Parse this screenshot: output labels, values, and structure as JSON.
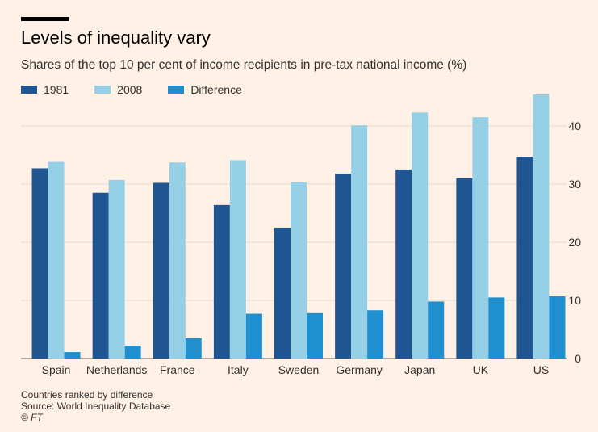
{
  "header": {
    "title": "Levels of inequality vary",
    "subtitle": "Shares of the top 10 per cent of income recipients in pre-tax national income (%)"
  },
  "footer": {
    "note": "Countries ranked by difference",
    "source": "Source: World Inequality Database",
    "credit": "© FT"
  },
  "chart_data": {
    "type": "bar",
    "categories": [
      "Spain",
      "Netherlands",
      "France",
      "Italy",
      "Sweden",
      "Germany",
      "Japan",
      "UK",
      "US"
    ],
    "series": [
      {
        "name": "1981",
        "color": "#1f5590",
        "values": [
          32.7,
          28.5,
          30.2,
          26.4,
          22.5,
          31.8,
          32.5,
          31.0,
          34.7
        ]
      },
      {
        "name": "2008",
        "color": "#96d0e6",
        "values": [
          33.8,
          30.7,
          33.7,
          34.1,
          30.3,
          40.1,
          42.3,
          41.5,
          45.4
        ]
      },
      {
        "name": "Difference",
        "color": "#1f8fd0",
        "values": [
          1.1,
          2.2,
          3.5,
          7.7,
          7.8,
          8.3,
          9.8,
          10.5,
          10.7
        ]
      }
    ],
    "yticks": [
      0,
      10,
      20,
      30,
      40
    ],
    "ylim": [
      0,
      45.4
    ],
    "y_axis_side": "right",
    "grid": true,
    "legend_position": "top-left"
  }
}
